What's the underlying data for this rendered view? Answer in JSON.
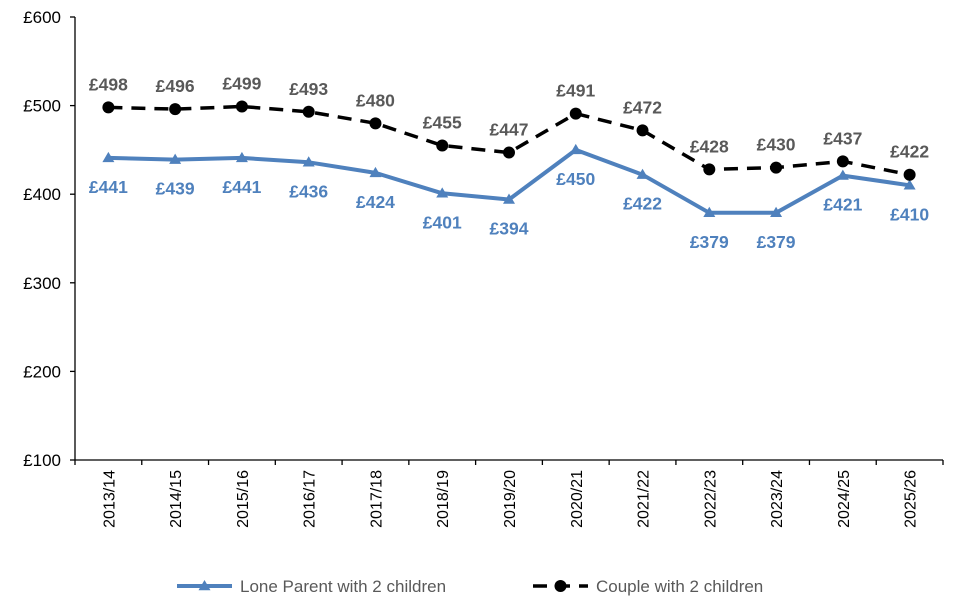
{
  "chart_data": {
    "type": "line",
    "categories": [
      "2013/14",
      "2014/15",
      "2015/16",
      "2016/17",
      "2017/18",
      "2018/19",
      "2019/20",
      "2020/21",
      "2021/22",
      "2022/23",
      "2023/24",
      "2024/25",
      "2025/26"
    ],
    "ylim": [
      100,
      600
    ],
    "yticks": [
      100,
      200,
      300,
      400,
      500,
      600
    ],
    "ytick_labels": [
      "£100",
      "£200",
      "£300",
      "£400",
      "£500",
      "£600"
    ],
    "grid": false,
    "legend_position": "bottom",
    "series": [
      {
        "name": "Lone Parent with 2 children",
        "values": [
          441,
          439,
          441,
          436,
          424,
          401,
          394,
          450,
          422,
          379,
          379,
          421,
          410
        ],
        "labels": [
          "£441",
          "£439",
          "£441",
          "£436",
          "£424",
          "£401",
          "£394",
          "£450",
          "£422",
          "£379",
          "£379",
          "£421",
          "£410"
        ],
        "color": "#4f81bd",
        "marker": "triangle",
        "line_style": "solid",
        "label_placement": "below"
      },
      {
        "name": "Couple with 2 children",
        "values": [
          498,
          496,
          499,
          493,
          480,
          455,
          447,
          491,
          472,
          428,
          430,
          437,
          422
        ],
        "labels": [
          "£498",
          "£496",
          "£499",
          "£493",
          "£480",
          "£455",
          "£447",
          "£491",
          "£472",
          "£428",
          "£430",
          "£437",
          "£422"
        ],
        "color": "#000000",
        "label_color": "#595959",
        "marker": "circle",
        "line_style": "dashed",
        "label_placement": "above"
      }
    ]
  }
}
